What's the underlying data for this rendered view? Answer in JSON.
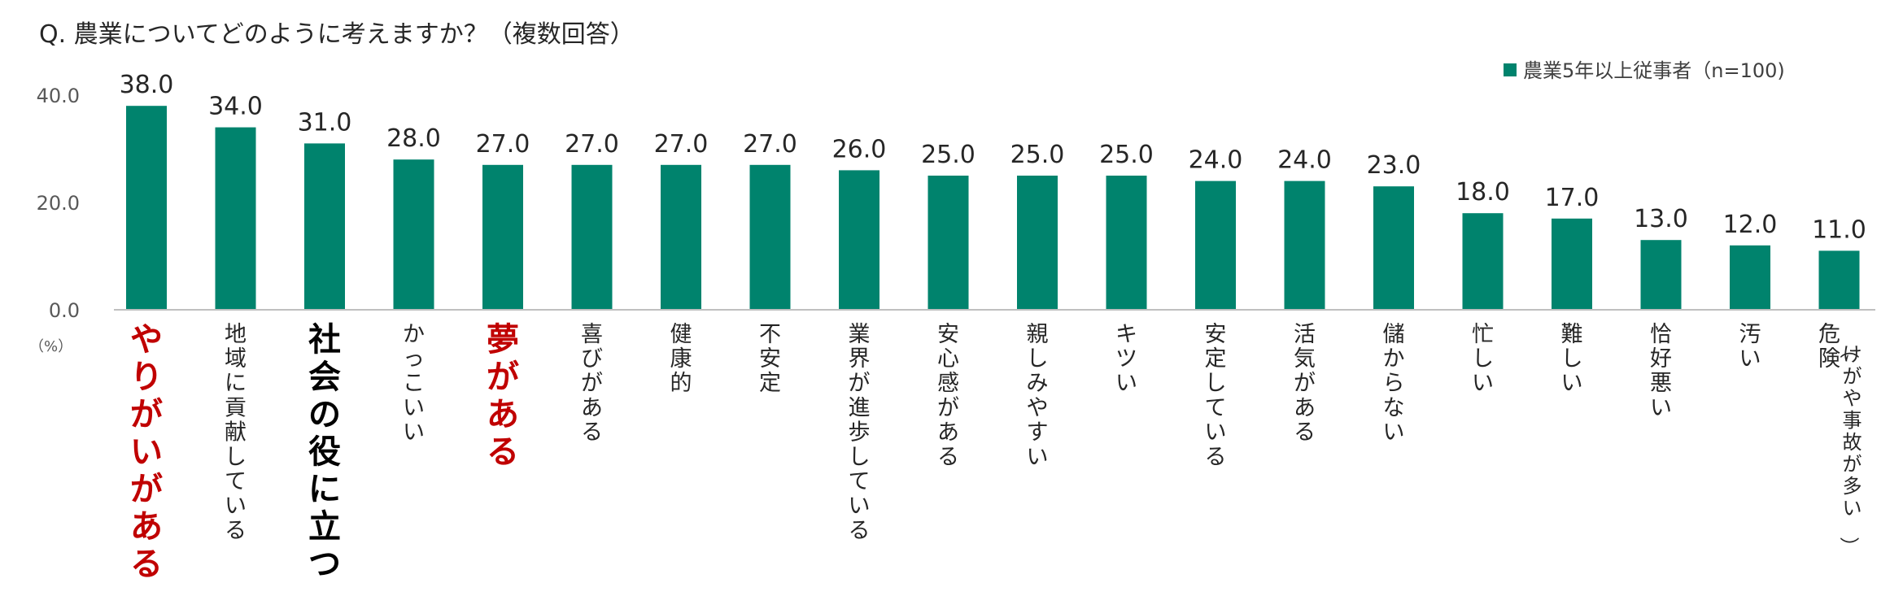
{
  "chart_data": {
    "type": "bar",
    "title": "Q. 農業についてどのように考えますか？（複数回答）",
    "unit_label": "（%）",
    "ylim": [
      0,
      40
    ],
    "yticks": [
      "0.0",
      "20.0",
      "40.0"
    ],
    "ytick_values": [
      0,
      20,
      40
    ],
    "grid": false,
    "legend_position": "top-right",
    "colors": {
      "bar": "#00836D",
      "text": "#262626",
      "highlight_red": "#C00000",
      "highlight_black": "#000000",
      "axis": "#BFBFBF"
    },
    "series": [
      {
        "name": "農業5年以上従事者（n=100)",
        "values": [
          38.0,
          34.0,
          31.0,
          28.0,
          27.0,
          27.0,
          27.0,
          27.0,
          26.0,
          25.0,
          25.0,
          25.0,
          24.0,
          24.0,
          23.0,
          18.0,
          17.0,
          13.0,
          12.0,
          11.0
        ]
      }
    ],
    "value_labels": [
      "38.0",
      "34.0",
      "31.0",
      "28.0",
      "27.0",
      "27.0",
      "27.0",
      "27.0",
      "26.0",
      "25.0",
      "25.0",
      "25.0",
      "24.0",
      "24.0",
      "23.0",
      "18.0",
      "17.0",
      "13.0",
      "12.0",
      "11.0"
    ],
    "categories": [
      "やりがいがある",
      "地域に貢献している",
      "社会の役に立つ",
      "かっこいい",
      "夢がある",
      "喜びがある",
      "健康的",
      "不安定",
      "業界が進歩している",
      "安心感がある",
      "親しみやすい",
      "キツい",
      "安定している",
      "活気がある",
      "儲からない",
      "忙しい",
      "難しい",
      "恰好悪い",
      "汚い",
      "危険"
    ],
    "category_notes": [
      "",
      "",
      "",
      "",
      "",
      "",
      "",
      "",
      "",
      "",
      "",
      "",
      "",
      "",
      "",
      "",
      "",
      "",
      "",
      "（けがや事故が多い）"
    ],
    "highlight": [
      "red",
      "",
      "black",
      "",
      "red",
      "",
      "",
      "",
      "",
      "",
      "",
      "",
      "",
      "",
      "",
      "",
      "",
      "",
      "",
      ""
    ]
  }
}
